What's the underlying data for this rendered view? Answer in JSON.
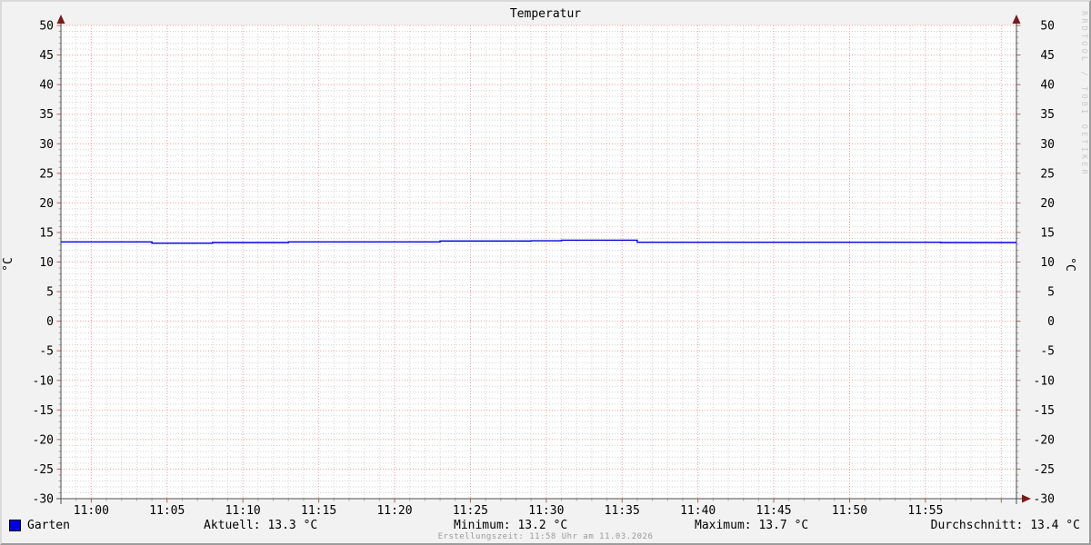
{
  "chart_data": {
    "type": "line",
    "title": "Temperatur",
    "ylabel_left": "°C",
    "ylabel_right": "°C",
    "ylim": [
      -30,
      50
    ],
    "y_major_step": 5,
    "y_minor_step": 1,
    "x_range": [
      "10:58",
      "12:01"
    ],
    "x_minor_step_min": 1,
    "x_major_step_min": 5,
    "x_major_labels": [
      "11:00",
      "11:05",
      "11:10",
      "11:15",
      "11:20",
      "11:25",
      "11:30",
      "11:35",
      "11:40",
      "11:45",
      "11:50",
      "11:55"
    ],
    "grid": true,
    "legend_position": "bottom",
    "watermark": "RRDTOOL / TOBI OETIKER",
    "series": [
      {
        "name": "Garten",
        "color": "#0000e0",
        "points": [
          [
            "10:58",
            13.4
          ],
          [
            "11:04",
            13.2
          ],
          [
            "11:08",
            13.3
          ],
          [
            "11:13",
            13.4
          ],
          [
            "11:23",
            13.55
          ],
          [
            "11:29",
            13.6
          ],
          [
            "11:31",
            13.7
          ],
          [
            "11:36",
            13.35
          ],
          [
            "11:56",
            13.3
          ],
          [
            "12:01",
            13.3
          ]
        ]
      }
    ],
    "stats": {
      "current": "13.3 °C",
      "minimum": "13.2 °C",
      "maximum": "13.7 °C",
      "average": "13.4 °C"
    }
  },
  "legend": {
    "series_label": "Garten",
    "stats": [
      {
        "name": "current",
        "text": "Aktuell: 13.3 °C"
      },
      {
        "name": "minimum",
        "text": "Minimum: 13.2 °C"
      },
      {
        "name": "maximum",
        "text": "Maximum: 13.7 °C"
      },
      {
        "name": "average",
        "text": "Durchschnitt: 13.4 °C"
      }
    ]
  },
  "footer": {
    "creation": "Erstellungszeit: 11:58 Uhr am 11.03.2026"
  },
  "colors": {
    "background": "#f2f2f2",
    "canvas": "#ffffff",
    "minor_grid": "#d4d4d4",
    "major_grid": "#f0a0a0",
    "axis": "#4d4d4d",
    "minor_tick": "#aaaaaa",
    "major_tick": "#c06060",
    "arrow": "#7a1b1b",
    "text": "#000000",
    "muted_text": "#9a9a9a",
    "watermark": "#c9c9c9"
  }
}
